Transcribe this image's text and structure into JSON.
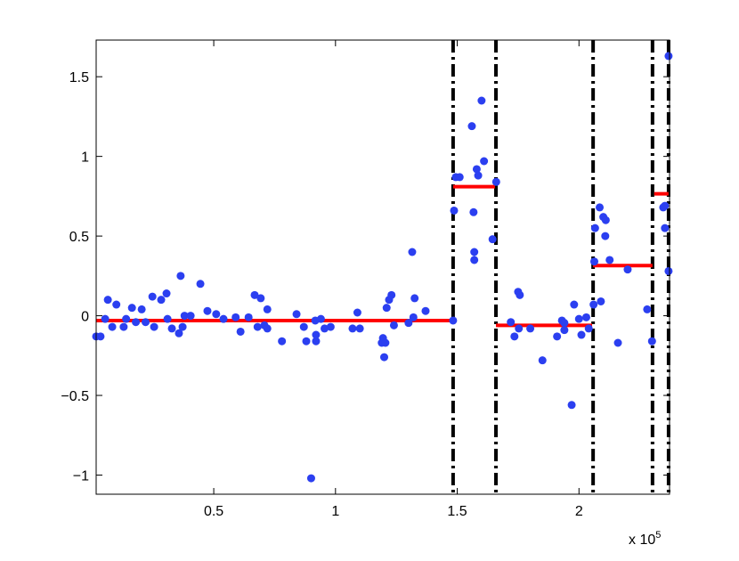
{
  "chart_data": {
    "type": "scatter",
    "x": [
      0.017,
      0.035,
      0.054,
      0.065,
      0.083,
      0.1,
      0.13,
      0.14,
      0.164,
      0.18,
      0.204,
      0.22,
      0.248,
      0.255,
      0.284,
      0.306,
      0.31,
      0.328,
      0.357,
      0.364,
      0.372,
      0.38,
      0.405,
      0.445,
      0.474,
      0.51,
      0.54,
      0.59,
      0.61,
      0.643,
      0.668,
      0.68,
      0.693,
      0.708,
      0.72,
      0.72,
      0.78,
      0.84,
      0.87,
      0.88,
      0.9,
      0.917,
      0.92,
      0.92,
      0.94,
      0.955,
      0.98,
      1.07,
      1.09,
      1.1,
      1.19,
      1.195,
      1.2,
      1.205,
      1.21,
      1.22,
      1.23,
      1.24,
      1.3,
      1.315,
      1.32,
      1.325,
      1.37,
      1.483,
      1.487,
      1.494,
      1.51,
      1.56,
      1.567,
      1.57,
      1.57,
      1.58,
      1.586,
      1.6,
      1.61,
      1.645,
      1.66,
      1.72,
      1.735,
      1.75,
      1.757,
      1.753,
      1.8,
      1.85,
      1.91,
      1.93,
      1.94,
      1.94,
      1.97,
      1.98,
      2.0,
      2.01,
      2.03,
      2.04,
      2.06,
      2.063,
      2.066,
      2.085,
      2.09,
      2.1,
      2.108,
      2.11,
      2.126,
      2.16,
      2.2,
      2.28,
      2.3,
      2.346,
      2.353,
      2.353,
      2.368,
      2.368
    ],
    "values": [
      -0.13,
      -0.13,
      -0.02,
      0.1,
      -0.07,
      0.07,
      -0.07,
      -0.02,
      0.05,
      -0.04,
      0.04,
      -0.04,
      0.12,
      -0.07,
      0.1,
      0.14,
      -0.02,
      -0.08,
      -0.11,
      0.25,
      -0.07,
      0.0,
      0.0,
      0.2,
      0.03,
      0.01,
      -0.02,
      -0.01,
      -0.1,
      -0.01,
      0.13,
      -0.07,
      0.11,
      -0.06,
      0.04,
      -0.08,
      -0.16,
      0.01,
      -0.07,
      -0.16,
      -1.02,
      -0.03,
      -0.16,
      -0.12,
      -0.02,
      -0.08,
      -0.07,
      -0.08,
      0.02,
      -0.08,
      -0.17,
      -0.14,
      -0.26,
      -0.17,
      0.05,
      0.1,
      0.13,
      -0.06,
      -0.045,
      0.4,
      -0.01,
      0.11,
      0.03,
      -0.03,
      0.66,
      0.87,
      0.87,
      1.19,
      0.65,
      0.4,
      0.35,
      0.92,
      0.88,
      1.35,
      0.97,
      0.48,
      0.84,
      -0.04,
      -0.13,
      0.15,
      0.13,
      -0.08,
      -0.08,
      -0.28,
      -0.13,
      -0.03,
      -0.045,
      -0.09,
      -0.56,
      0.07,
      -0.02,
      -0.12,
      -0.01,
      -0.08,
      0.07,
      0.34,
      0.55,
      0.68,
      0.09,
      0.62,
      0.5,
      0.6,
      0.35,
      -0.17,
      0.29,
      0.04,
      -0.16,
      0.68,
      0.69,
      0.55,
      1.63,
      0.28
    ],
    "color": "#2b3ff0",
    "segments": [
      {
        "x": [
          0.017,
          1.476
        ],
        "value": -0.03
      },
      {
        "x": [
          1.483,
          1.655
        ],
        "value": 0.81
      },
      {
        "x": [
          1.659,
          2.054
        ],
        "value": -0.06
      },
      {
        "x": [
          2.058,
          2.302
        ],
        "value": 0.315
      },
      {
        "x": [
          2.309,
          2.368
        ],
        "value": 0.765
      }
    ],
    "segment_color": "#ff0000",
    "changepoints": [
      1.483,
      1.659,
      2.058,
      2.302,
      2.368
    ],
    "xlim": [
      0.017,
      2.372
    ],
    "xticks": [
      0.5,
      1,
      1.5,
      2
    ],
    "ylim": [
      -1.12,
      1.73
    ],
    "yticks": [
      -1,
      -0.5,
      0,
      0.5,
      1,
      1.5
    ],
    "x_multiplier": "x 10",
    "x_exponent": "5"
  }
}
